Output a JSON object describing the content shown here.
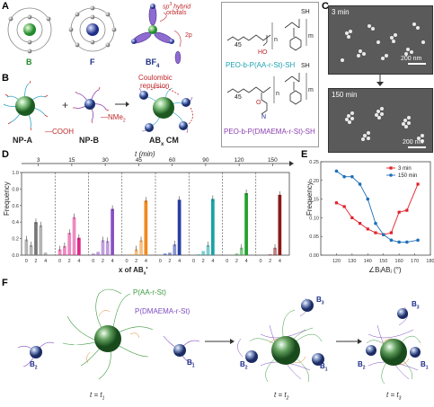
{
  "panels": {
    "A": {
      "label": "A",
      "atoms": [
        "B",
        "F",
        "BF"
      ],
      "bf_subscript": "4",
      "hybrid": "sp",
      "hybrid_sup": "3",
      "hybrid_rest": " hybrid",
      "orbitals": "orbitals",
      "p_orb": "2p"
    },
    "B": {
      "label": "B",
      "np_a": "NP-A",
      "np_b": "NP-B",
      "product": "AB",
      "product_sub": "x",
      "product_rest": " CM",
      "cooh": "—COOH",
      "nme2": "—NMe",
      "nme2_sub": "2",
      "repulsion_1": "Coulombic",
      "repulsion_2": "repulsion",
      "plus": "+"
    },
    "polymers": {
      "top_name": "PEO-b-P(AA-r-St)-SH",
      "bottom_name": "PEO-b-P(DMAEMA-r-St)-SH",
      "sub45": "45",
      "n": "n",
      "m": "m",
      "sh": "SH",
      "ho": "HO",
      "o": "O",
      "n_atom": "N"
    },
    "C": {
      "label": "C",
      "t1": "3 min",
      "t2": "150 min",
      "scale": "200 nm"
    },
    "D": {
      "label": "D",
      "t_axis": "t (min)",
      "times": [
        "3",
        "15",
        "30",
        "45",
        "60",
        "90",
        "120",
        "150"
      ],
      "ylabel": "Frequency",
      "xlabel_pre": "x of AB",
      "xlabel_sub": "x",
      "xticks": [
        "0",
        "2",
        "4"
      ],
      "yticks": [
        "0.0",
        "0.2",
        "0.4",
        "0.6",
        "0.8",
        "1.0"
      ]
    },
    "E": {
      "label": "E",
      "ylabel": "Frequency",
      "xlabel": "∠BᵢABⱼ (°)",
      "legend": [
        "3 min",
        "150 min"
      ]
    },
    "F": {
      "label": "F",
      "pAA": "P(AA-r-St)",
      "pDM": "P(DMAEMA-r-St)",
      "b1": "B",
      "b2": "B",
      "b3": "B",
      "s1": "1",
      "s2": "2",
      "s3": "3",
      "t1": "t = t",
      "t2": "t = t",
      "t3": "t = t"
    }
  },
  "chart_data": [
    {
      "type": "bar",
      "title": "",
      "xlabel": "x of AB_x'",
      "ylabel": "Frequency",
      "ylim": [
        0,
        1.0
      ],
      "categories": [
        "0",
        "1",
        "2",
        "3",
        "4"
      ],
      "colors": [
        "#777777",
        "#e0288c",
        "#8a4fc4",
        "#f08a1e",
        "#2a3ea6",
        "#19a3a6",
        "#22a22e",
        "#8b1a1a"
      ],
      "series": [
        {
          "name": "3",
          "values": [
            0.19,
            0.12,
            0.4,
            0.36,
            0.03
          ]
        },
        {
          "name": "15",
          "values": [
            0.07,
            0.11,
            0.27,
            0.46,
            0.21
          ]
        },
        {
          "name": "30",
          "values": [
            0.02,
            0.04,
            0.18,
            0.17,
            0.56
          ]
        },
        {
          "name": "45",
          "values": [
            0.0,
            0.01,
            0.07,
            0.18,
            0.66
          ]
        },
        {
          "name": "60",
          "values": [
            0.0,
            0.02,
            0.03,
            0.13,
            0.67
          ]
        },
        {
          "name": "90",
          "values": [
            0.0,
            0.01,
            0.05,
            0.12,
            0.68
          ]
        },
        {
          "name": "120",
          "values": [
            0.0,
            0.0,
            0.02,
            0.09,
            0.75
          ]
        },
        {
          "name": "150",
          "values": [
            0.0,
            0.0,
            0.01,
            0.09,
            0.73
          ]
        }
      ]
    },
    {
      "type": "line",
      "title": "",
      "xlabel": "∠BᵢABⱼ (°)",
      "ylabel": "Frequency",
      "xlim": [
        110,
        180
      ],
      "ylim": [
        0.0,
        0.25
      ],
      "xticks": [
        120,
        130,
        140,
        150,
        160,
        170,
        180
      ],
      "yticks": [
        0.0,
        0.05,
        0.1,
        0.15,
        0.2,
        0.25
      ],
      "series": [
        {
          "name": "3 min",
          "color": "#e0202a",
          "x": [
            120,
            125,
            130,
            135,
            140,
            145,
            150,
            155,
            160,
            165,
            172
          ],
          "y": [
            0.14,
            0.13,
            0.1,
            0.085,
            0.07,
            0.06,
            0.055,
            0.06,
            0.115,
            0.12,
            0.19
          ]
        },
        {
          "name": "150 min",
          "color": "#1f6fb8",
          "x": [
            120,
            125,
            130,
            135,
            140,
            145,
            150,
            155,
            160,
            165,
            172
          ],
          "y": [
            0.225,
            0.21,
            0.21,
            0.19,
            0.15,
            0.085,
            0.055,
            0.04,
            0.035,
            0.035,
            0.04
          ]
        }
      ]
    }
  ]
}
